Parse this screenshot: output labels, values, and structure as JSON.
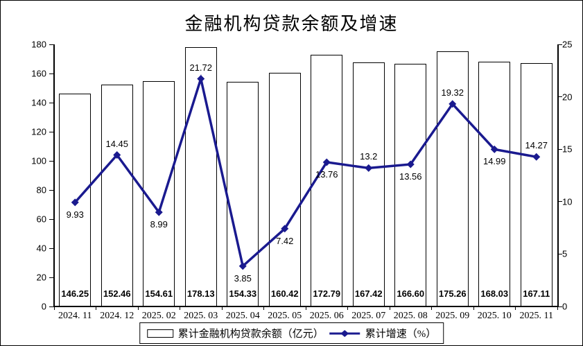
{
  "chart_data": {
    "type": "combo",
    "title": "金融机构贷款余额及增速",
    "categories": [
      "2024. 11",
      "2024. 12",
      "2025. 02",
      "2025. 03",
      "2025. 04",
      "2025. 05",
      "2025. 06",
      "2025. 07",
      "2025. 08",
      "2025. 09",
      "2025. 10",
      "2025. 11"
    ],
    "series": [
      {
        "name": "累计金融机构贷款余额（亿元）",
        "type": "bar",
        "axis": "left",
        "values": [
          146.25,
          152.46,
          154.61,
          178.13,
          154.33,
          160.42,
          172.79,
          167.42,
          166.6,
          175.26,
          168.03,
          167.11
        ],
        "labels": [
          "146.25",
          "152.46",
          "154.61",
          "178.13",
          "154.33",
          "160.42",
          "172.79",
          "167.42",
          "166.60",
          "175.26",
          "168.03",
          "167.11"
        ]
      },
      {
        "name": "累计增速（%）",
        "type": "line",
        "axis": "right",
        "values": [
          9.93,
          14.45,
          8.99,
          21.72,
          3.85,
          7.42,
          13.76,
          13.2,
          13.56,
          19.32,
          14.99,
          14.27
        ],
        "labels": [
          "9.93",
          "14.45",
          "8.99",
          "21.72",
          "3.85",
          "7.42",
          "13.76",
          "13.2",
          "13.56",
          "19.32",
          "14.99",
          "14.27"
        ]
      }
    ],
    "left_axis": {
      "min": 0,
      "max": 180,
      "step": 20,
      "ticks": [
        "0",
        "20",
        "40",
        "60",
        "80",
        "100",
        "120",
        "140",
        "160",
        "180"
      ]
    },
    "right_axis": {
      "min": 0,
      "max": 25,
      "step": 5,
      "ticks": [
        "0",
        "5",
        "10",
        "15",
        "20",
        "25"
      ]
    },
    "legend_position": "bottom",
    "grid": false,
    "colors": {
      "bar_fill": "#ffffff",
      "bar_border": "#000000",
      "line": "#1a1a8f",
      "text": "#000000",
      "background": "#ffffff"
    }
  }
}
